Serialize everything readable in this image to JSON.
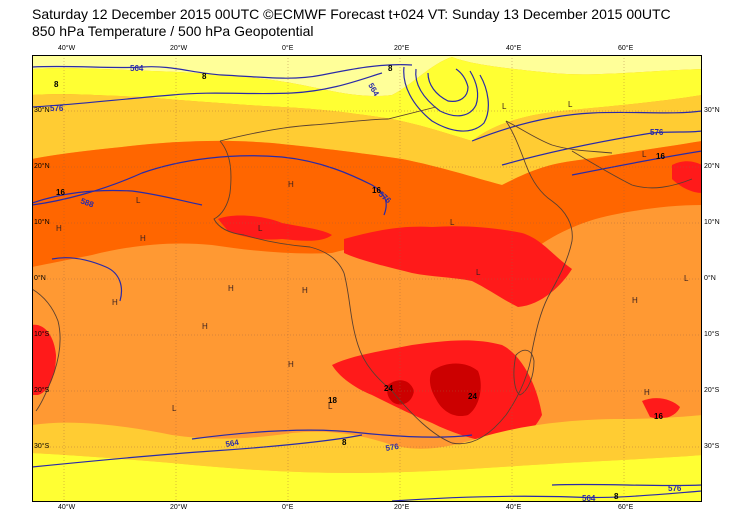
{
  "header": {
    "line1": "Saturday 12 December 2015 00UTC ©ECMWF Forecast t+024 VT: Sunday 13 December 2015 00UTC",
    "line2": "850 hPa Temperature / 500 hPa Geopotential"
  },
  "map": {
    "lon_labels_top": [
      "40°W",
      "20°W",
      "0°E",
      "20°E",
      "40°E",
      "60°E"
    ],
    "lon_labels_bottom": [
      "40°W",
      "20°W",
      "0°E",
      "20°E",
      "40°E",
      "60°E"
    ],
    "lat_labels_right": [
      "30°N",
      "20°N",
      "10°N",
      "0°N",
      "10°S",
      "20°S",
      "30°S"
    ],
    "lat_labels_left": [
      "30°N",
      "20°N",
      "10°N",
      "0°N",
      "10°S",
      "20°S",
      "30°S"
    ],
    "contour_labels": {
      "c564a": "564",
      "c576a": "576",
      "c576b": "576",
      "c564b": "564",
      "c588a": "588",
      "c576c": "576",
      "c564c": "564",
      "c576d": "576",
      "c588b": "588",
      "c576e": "576",
      "c564d": "564",
      "c576f": "576"
    },
    "temp_labels": {
      "t16a": "16",
      "t16b": "16",
      "t8a": "8",
      "t8b": "8",
      "t8c": "8",
      "t8d": "8",
      "t8e": "8",
      "t16c": "16",
      "t24a": "24",
      "t24b": "24",
      "t18": "18",
      "t16d": "16"
    },
    "pressure_markers": [
      "H",
      "L"
    ],
    "colors": {
      "pale_yellow": "#ffff99",
      "yellow": "#ffff33",
      "light_orange": "#ffcc33",
      "orange": "#ff9933",
      "dark_orange": "#ff6600",
      "red": "#ff1a1a",
      "dark_red": "#cc0000",
      "contour_blue": "#2a2aa8",
      "coastline": "#5a4030"
    }
  }
}
